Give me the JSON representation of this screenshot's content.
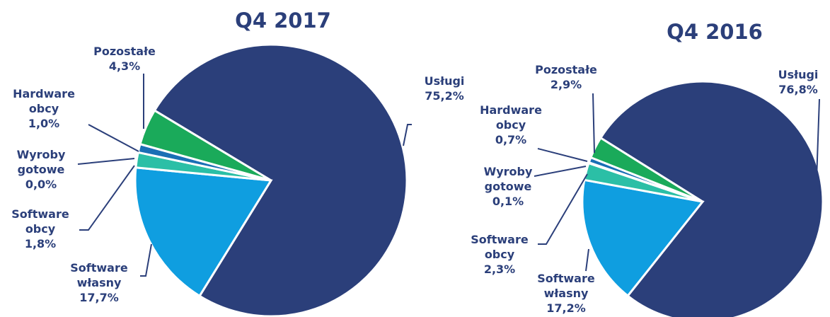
{
  "chart_data": [
    {
      "type": "pie",
      "title": "Q4 2017",
      "categories": [
        "Usługi",
        "Software własny",
        "Software obcy",
        "Wyroby gotowe",
        "Hardware obcy",
        "Pozostałe"
      ],
      "values": [
        75.2,
        17.7,
        1.8,
        0.0,
        1.0,
        4.3
      ],
      "value_labels": [
        "75,2%",
        "17,7%",
        "1,8%",
        "0,0%",
        "1,0%",
        "4,3%"
      ],
      "colors": [
        "#2b3f7a",
        "#0f9ee0",
        "#2bbfa6",
        "#1fb08a",
        "#1a6fb5",
        "#1aaa5a"
      ]
    },
    {
      "type": "pie",
      "title": "Q4 2016",
      "categories": [
        "Usługi",
        "Software własny",
        "Software obcy",
        "Wyroby gotowe",
        "Hardware obcy",
        "Pozostałe"
      ],
      "values": [
        76.8,
        17.2,
        2.3,
        0.1,
        0.7,
        2.9
      ],
      "value_labels": [
        "76,8%",
        "17,2%",
        "2,3%",
        "0,1%",
        "0,7%",
        "2,9%"
      ],
      "colors": [
        "#2b3f7a",
        "#0f9ee0",
        "#2bbfa6",
        "#1fb08a",
        "#1a6fb5",
        "#1aaa5a"
      ]
    }
  ]
}
